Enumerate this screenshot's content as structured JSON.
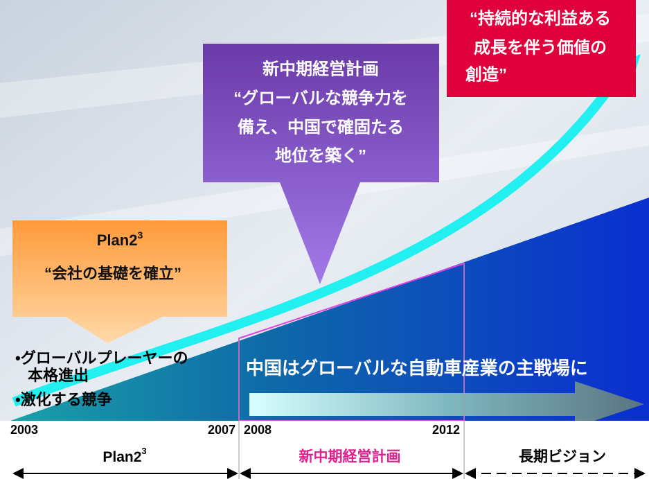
{
  "top_box": {
    "lines": [
      "“持続的な利益ある",
      "成長を伴う価値の",
      "創造”"
    ]
  },
  "mid_box": {
    "lines": [
      "新中期経営計画",
      "“グローバルな競争力を",
      "備え、中国で確固たる",
      "地位を築く”"
    ]
  },
  "plan_box": {
    "title": "Plan2",
    "sup": "3",
    "subtitle": "“会社の基礎を確立”"
  },
  "bullets": [
    {
      "line1": "•グローバルプレーヤーの",
      "line2": "本格進出"
    },
    {
      "line1": "•激化する競争"
    }
  ],
  "banner": "中国はグローバルな自動車産業の主戦場に",
  "years": [
    "2003",
    "2007",
    "2008",
    "2012"
  ],
  "phases": [
    {
      "title": "Plan2",
      "sup": "3"
    },
    {
      "title": "新中期経営計画"
    },
    {
      "title": "長期ビジョン"
    }
  ]
}
